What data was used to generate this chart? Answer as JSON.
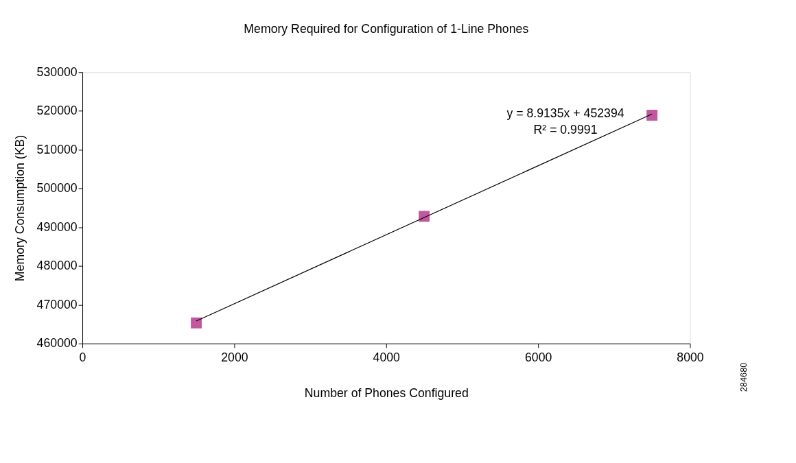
{
  "chart_data": {
    "type": "scatter",
    "title": "Memory Required for Configuration of 1-Line Phones",
    "xlabel": "Number of Phones Configured",
    "ylabel": "Memory Consumption (KB)",
    "series": [
      {
        "color": "#c0579f",
        "marker": "square",
        "x": [
          1500,
          4500,
          7500
        ],
        "values": [
          465300,
          492800,
          518900
        ]
      },
      {
        "type": "line",
        "color": "#000000",
        "x": [
          1500,
          7500
        ],
        "values": [
          465800,
          519200
        ]
      }
    ],
    "xlim": [
      0,
      8000
    ],
    "xticks": [
      0,
      2000,
      4000,
      6000,
      8000
    ],
    "ylim": [
      460000,
      530000
    ],
    "yticks": [
      460000,
      470000,
      480000,
      490000,
      500000,
      510000,
      520000,
      530000
    ],
    "grid": false,
    "annotations": [
      "y = 8.9135x + 452394",
      "R² = 0.9991",
      "284680"
    ]
  }
}
